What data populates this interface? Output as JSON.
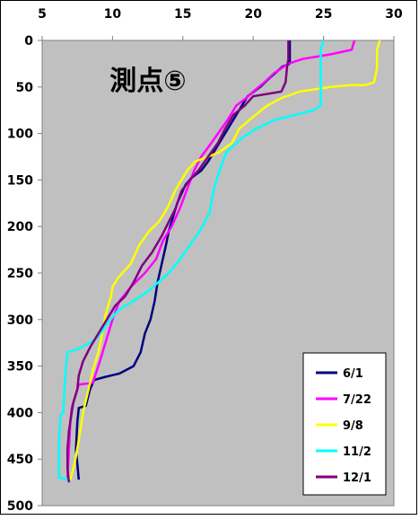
{
  "chart_data": {
    "type": "line",
    "title": "測点⑤",
    "xlabel": "",
    "ylabel": "",
    "xlim": [
      5,
      30
    ],
    "ylim": [
      0,
      500
    ],
    "y_inverted": true,
    "x_axis_position": "top",
    "xticks": [
      5,
      10,
      15,
      20,
      25,
      30
    ],
    "yticks": [
      0,
      50,
      100,
      150,
      200,
      250,
      300,
      350,
      400,
      450,
      500
    ],
    "grid": false,
    "legend_position": "bottom-right",
    "series": [
      {
        "name": "6/1",
        "color": "#00007f",
        "points": [
          [
            22.6,
            0
          ],
          [
            22.6,
            25
          ],
          [
            22.1,
            28
          ],
          [
            21.2,
            40
          ],
          [
            20.5,
            50
          ],
          [
            19.6,
            60
          ],
          [
            19.0,
            75
          ],
          [
            18.2,
            95
          ],
          [
            17.4,
            115
          ],
          [
            16.8,
            130
          ],
          [
            16.3,
            140
          ],
          [
            15.6,
            148
          ],
          [
            15.2,
            155
          ],
          [
            14.9,
            165
          ],
          [
            14.6,
            175
          ],
          [
            14.3,
            190
          ],
          [
            14.0,
            205
          ],
          [
            13.8,
            220
          ],
          [
            13.5,
            240
          ],
          [
            13.2,
            260
          ],
          [
            13.0,
            280
          ],
          [
            12.7,
            300
          ],
          [
            12.3,
            315
          ],
          [
            12.0,
            335
          ],
          [
            11.5,
            350
          ],
          [
            10.5,
            358
          ],
          [
            9.4,
            362
          ],
          [
            8.7,
            365
          ],
          [
            8.4,
            375
          ],
          [
            8.1,
            393
          ],
          [
            7.6,
            395
          ],
          [
            7.5,
            410
          ],
          [
            7.4,
            440
          ],
          [
            7.5,
            455
          ],
          [
            7.6,
            472
          ]
        ]
      },
      {
        "name": "7/22",
        "color": "#ff00ff",
        "points": [
          [
            27.2,
            0
          ],
          [
            27.0,
            10
          ],
          [
            25.5,
            15
          ],
          [
            23.5,
            20
          ],
          [
            22.5,
            25
          ],
          [
            21.5,
            35
          ],
          [
            20.8,
            45
          ],
          [
            20.0,
            55
          ],
          [
            19.5,
            62
          ],
          [
            18.8,
            70
          ],
          [
            18.2,
            85
          ],
          [
            17.5,
            100
          ],
          [
            16.8,
            115
          ],
          [
            16.3,
            125
          ],
          [
            15.8,
            140
          ],
          [
            15.3,
            160
          ],
          [
            14.8,
            180
          ],
          [
            14.2,
            200
          ],
          [
            13.6,
            215
          ],
          [
            13.1,
            235
          ],
          [
            12.3,
            250
          ],
          [
            11.3,
            265
          ],
          [
            10.5,
            280
          ],
          [
            10.0,
            300
          ],
          [
            9.6,
            320
          ],
          [
            9.1,
            345
          ],
          [
            8.6,
            368
          ],
          [
            7.6,
            370
          ],
          [
            7.4,
            380
          ],
          [
            7.1,
            395
          ],
          [
            7.0,
            410
          ],
          [
            6.9,
            440
          ],
          [
            6.8,
            470
          ]
        ]
      },
      {
        "name": "9/8",
        "color": "#ffff00",
        "points": [
          [
            29.0,
            0
          ],
          [
            28.8,
            10
          ],
          [
            28.8,
            30
          ],
          [
            28.6,
            45
          ],
          [
            28.0,
            48
          ],
          [
            27.0,
            48
          ],
          [
            25.5,
            50
          ],
          [
            23.3,
            55
          ],
          [
            22.0,
            62
          ],
          [
            21.0,
            70
          ],
          [
            20.0,
            82
          ],
          [
            19.0,
            95
          ],
          [
            18.5,
            110
          ],
          [
            17.6,
            120
          ],
          [
            16.8,
            125
          ],
          [
            15.9,
            130
          ],
          [
            15.3,
            140
          ],
          [
            14.5,
            160
          ],
          [
            13.9,
            180
          ],
          [
            13.3,
            195
          ],
          [
            12.6,
            205
          ],
          [
            11.9,
            220
          ],
          [
            11.3,
            240
          ],
          [
            10.4,
            255
          ],
          [
            10.0,
            265
          ],
          [
            9.9,
            275
          ],
          [
            9.5,
            295
          ],
          [
            9.2,
            320
          ],
          [
            9.0,
            335
          ],
          [
            8.6,
            355
          ],
          [
            8.3,
            375
          ],
          [
            7.9,
            400
          ],
          [
            7.6,
            430
          ],
          [
            7.3,
            455
          ],
          [
            7.0,
            472
          ]
        ]
      },
      {
        "name": "11/2",
        "color": "#00ffff",
        "points": [
          [
            25.0,
            0
          ],
          [
            24.8,
            10
          ],
          [
            24.8,
            40
          ],
          [
            24.8,
            70
          ],
          [
            24.3,
            75
          ],
          [
            23.0,
            80
          ],
          [
            21.6,
            85
          ],
          [
            20.2,
            95
          ],
          [
            19.2,
            105
          ],
          [
            18.1,
            120
          ],
          [
            17.6,
            140
          ],
          [
            17.2,
            160
          ],
          [
            16.9,
            185
          ],
          [
            16.2,
            205
          ],
          [
            15.5,
            220
          ],
          [
            14.8,
            235
          ],
          [
            14.0,
            250
          ],
          [
            13.1,
            262
          ],
          [
            12.5,
            270
          ],
          [
            11.5,
            280
          ],
          [
            10.4,
            290
          ],
          [
            9.6,
            305
          ],
          [
            9.0,
            318
          ],
          [
            8.4,
            325
          ],
          [
            7.5,
            332
          ],
          [
            6.8,
            335
          ],
          [
            6.7,
            350
          ],
          [
            6.6,
            370
          ],
          [
            6.5,
            400
          ],
          [
            6.3,
            403
          ],
          [
            6.2,
            430
          ],
          [
            6.2,
            460
          ],
          [
            6.2,
            470
          ],
          [
            6.8,
            472
          ]
        ]
      },
      {
        "name": "12/1",
        "color": "#7f007f",
        "points": [
          [
            22.5,
            0
          ],
          [
            22.5,
            20
          ],
          [
            22.4,
            30
          ],
          [
            22.3,
            45
          ],
          [
            22.0,
            55
          ],
          [
            20.0,
            60
          ],
          [
            19.4,
            70
          ],
          [
            18.6,
            80
          ],
          [
            18.0,
            95
          ],
          [
            17.5,
            110
          ],
          [
            16.8,
            125
          ],
          [
            16.1,
            140
          ],
          [
            15.5,
            150
          ],
          [
            14.9,
            162
          ],
          [
            14.5,
            180
          ],
          [
            14.0,
            195
          ],
          [
            13.5,
            210
          ],
          [
            12.8,
            228
          ],
          [
            12.1,
            242
          ],
          [
            11.5,
            260
          ],
          [
            10.9,
            275
          ],
          [
            10.2,
            285
          ],
          [
            9.6,
            300
          ],
          [
            9.0,
            315
          ],
          [
            8.4,
            330
          ],
          [
            7.9,
            345
          ],
          [
            7.6,
            360
          ],
          [
            7.5,
            375
          ],
          [
            7.2,
            390
          ],
          [
            7.1,
            400
          ],
          [
            6.9,
            420
          ],
          [
            6.8,
            440
          ],
          [
            6.8,
            460
          ],
          [
            6.9,
            475
          ]
        ]
      }
    ]
  }
}
